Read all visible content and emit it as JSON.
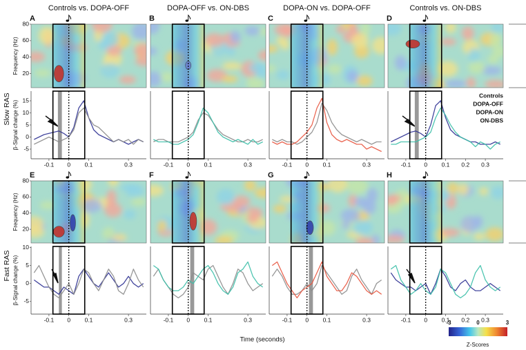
{
  "chart_data": [
    {
      "type": "line",
      "letter": "A",
      "title": "Controls vs. DOPA-OFF",
      "x": [
        -0.175,
        -0.15,
        -0.125,
        -0.1,
        -0.075,
        -0.05,
        -0.025,
        0,
        0.025,
        0.05,
        0.075,
        0.1,
        0.125,
        0.15,
        0.175,
        0.2,
        0.225,
        0.25,
        0.275,
        0.3,
        0.325,
        0.35,
        0.375
      ],
      "xlim": [
        -0.19,
        0.39
      ],
      "xticks": [
        -0.1,
        0,
        0.1,
        0.3
      ],
      "ylim": [
        -9,
        19
      ],
      "yticks": [
        -5,
        0,
        5,
        10,
        15
      ],
      "ylabel": "β-Signal change (%)",
      "freq_ylim": [
        3,
        80
      ],
      "freq_yticks": [
        20,
        40,
        60,
        80
      ],
      "freq_ylabel": "Frequency (Hz)",
      "analysis_window": [
        -0.08,
        0.08
      ],
      "shaded_window": [
        -0.055,
        -0.035
      ],
      "series": [
        {
          "name": "Controls",
          "color": "#2e3192",
          "values": [
            -1,
            0,
            1,
            1.5,
            2,
            2.5,
            1.5,
            0,
            4,
            12,
            15,
            8,
            3,
            1,
            0,
            -1,
            -2,
            -1,
            -2,
            -3,
            -2,
            -1,
            -2
          ]
        },
        {
          "name": "DOPA-OFF",
          "color": "#8c8c8c",
          "values": [
            -3,
            -2,
            -1,
            0,
            -1,
            -2,
            -1,
            0,
            3,
            10,
            12,
            8,
            5,
            4,
            2,
            0,
            -2,
            -1,
            -2,
            -1,
            -3,
            -1,
            -2
          ]
        }
      ]
    },
    {
      "type": "line",
      "letter": "B",
      "title": "DOPA-OFF vs. ON-DBS",
      "x": [
        -0.175,
        -0.15,
        -0.125,
        -0.1,
        -0.075,
        -0.05,
        -0.025,
        0,
        0.025,
        0.05,
        0.075,
        0.1,
        0.125,
        0.15,
        0.175,
        0.2,
        0.225,
        0.25,
        0.275,
        0.3,
        0.325,
        0.35,
        0.375
      ],
      "xlim": [
        -0.19,
        0.39
      ],
      "xticks": [
        -0.1,
        0,
        0.1,
        0.3
      ],
      "ylim": [
        -9,
        19
      ],
      "freq_ylim": [
        3,
        80
      ],
      "analysis_window": [
        -0.08,
        0.08
      ],
      "series": [
        {
          "name": "DOPA-OFF",
          "color": "#8c8c8c",
          "values": [
            -2,
            -1,
            -1,
            -2,
            -2,
            -2,
            -1,
            0,
            2,
            7,
            10,
            9,
            6,
            3,
            1,
            0,
            -1,
            -2,
            -2,
            -1,
            -2,
            -2,
            -1
          ]
        },
        {
          "name": "ON-DBS",
          "color": "#3cbfa8",
          "values": [
            -1,
            -2,
            -2,
            -2,
            -3,
            -3,
            -2,
            -1,
            1,
            6,
            12,
            10,
            6,
            2,
            0,
            -1,
            -2,
            -1,
            -2,
            -3,
            -1,
            -3,
            -2
          ]
        }
      ]
    },
    {
      "type": "line",
      "letter": "C",
      "title": "DOPA-ON vs. DOPA-OFF",
      "x": [
        -0.175,
        -0.15,
        -0.125,
        -0.1,
        -0.075,
        -0.05,
        -0.025,
        0,
        0.025,
        0.05,
        0.075,
        0.1,
        0.125,
        0.15,
        0.175,
        0.2,
        0.225,
        0.25,
        0.275,
        0.3,
        0.325,
        0.35,
        0.375
      ],
      "xlim": [
        -0.19,
        0.39
      ],
      "xticks": [
        -0.1,
        0,
        0.1,
        0.3
      ],
      "ylim": [
        -9,
        19
      ],
      "freq_ylim": [
        3,
        80
      ],
      "analysis_window": [
        -0.08,
        0.08
      ],
      "series": [
        {
          "name": "DOPA-OFF",
          "color": "#8c8c8c",
          "values": [
            -1,
            -2,
            -1,
            -2,
            -2,
            -3,
            -2,
            0,
            2,
            6,
            14,
            11,
            6,
            3,
            1,
            0,
            -1,
            -2,
            -1,
            -2,
            -3,
            -2,
            -2
          ]
        },
        {
          "name": "DOPA-ON",
          "color": "#e8553f",
          "values": [
            -2,
            -3,
            -2,
            -3,
            -3,
            -2,
            0,
            2,
            5,
            12,
            16,
            6,
            1,
            -1,
            -2,
            -1,
            -2,
            -3,
            -3,
            -5,
            -4,
            -5,
            -6
          ]
        }
      ]
    },
    {
      "type": "line",
      "letter": "D",
      "title": "Controls vs. ON-DBS",
      "x": [
        -0.175,
        -0.15,
        -0.125,
        -0.1,
        -0.075,
        -0.05,
        -0.025,
        0,
        0.025,
        0.05,
        0.075,
        0.1,
        0.125,
        0.15,
        0.175,
        0.2,
        0.225,
        0.25,
        0.275,
        0.3,
        0.325,
        0.35,
        0.375
      ],
      "xlim": [
        -0.19,
        0.39
      ],
      "xticks": [
        -0.1,
        0,
        0.1,
        0.2,
        0.3
      ],
      "ylim": [
        -9,
        19
      ],
      "freq_ylim": [
        3,
        80
      ],
      "analysis_window": [
        -0.08,
        0.08
      ],
      "shaded_window": [
        -0.055,
        -0.035
      ],
      "series": [
        {
          "name": "Controls",
          "color": "#2e3192",
          "values": [
            -2,
            -1,
            0,
            1,
            2,
            2.5,
            1.5,
            0,
            5,
            13,
            15,
            8,
            3,
            1,
            0,
            -1,
            -2,
            -2,
            -3,
            -3,
            -3,
            -2,
            -3
          ]
        },
        {
          "name": "ON-DBS",
          "color": "#3cbfa8",
          "values": [
            -3,
            -3,
            -2,
            -2,
            -2,
            -2,
            -1,
            0,
            2,
            8,
            12,
            9,
            5,
            2,
            0,
            -1,
            -2,
            -4,
            -2,
            -3,
            -5,
            -3,
            -2
          ]
        }
      ]
    },
    {
      "type": "line",
      "letter": "E",
      "x": [
        -0.175,
        -0.15,
        -0.125,
        -0.1,
        -0.075,
        -0.05,
        -0.025,
        0,
        0.025,
        0.05,
        0.075,
        0.1,
        0.125,
        0.15,
        0.175,
        0.2,
        0.225,
        0.25,
        0.275,
        0.3,
        0.325,
        0.35,
        0.375
      ],
      "xlim": [
        -0.19,
        0.39
      ],
      "xticks": [
        -0.1,
        0,
        0.1,
        0.3
      ],
      "ylim": [
        -8.5,
        10.3
      ],
      "yticks": [
        -5,
        0,
        5,
        10
      ],
      "ylabel": "β-Signal change (%)",
      "freq_ylim": [
        3,
        80
      ],
      "freq_yticks": [
        20,
        40,
        60,
        80
      ],
      "freq_ylabel": "Frequency (Hz)",
      "analysis_window": [
        -0.08,
        0.08
      ],
      "shaded_window": [
        -0.05,
        -0.035
      ],
      "series": [
        {
          "name": "Controls",
          "color": "#2e3192",
          "values": [
            1,
            0,
            -1,
            -1,
            -2,
            -3,
            -1,
            -2,
            -3,
            2,
            4,
            2,
            0,
            -1,
            1,
            3,
            1,
            -1,
            0,
            2,
            0,
            -1,
            0
          ]
        },
        {
          "name": "DOPA-OFF",
          "color": "#8c8c8c",
          "values": [
            3,
            5,
            2,
            -1,
            -3,
            -4,
            -2,
            0,
            -3,
            0,
            4,
            3,
            0,
            -2,
            1,
            4,
            2,
            -2,
            -3,
            0,
            4,
            1,
            -1
          ]
        }
      ]
    },
    {
      "type": "line",
      "letter": "F",
      "x": [
        -0.175,
        -0.15,
        -0.125,
        -0.1,
        -0.075,
        -0.05,
        -0.025,
        0,
        0.025,
        0.05,
        0.075,
        0.1,
        0.125,
        0.15,
        0.175,
        0.2,
        0.225,
        0.25,
        0.275,
        0.3,
        0.325,
        0.35,
        0.375
      ],
      "xlim": [
        -0.19,
        0.39
      ],
      "xticks": [
        -0.1,
        0,
        0.1,
        0.3
      ],
      "ylim": [
        -8.5,
        10.3
      ],
      "freq_ylim": [
        3,
        80
      ],
      "analysis_window": [
        -0.08,
        0.08
      ],
      "shaded_window": [
        0.01,
        0.03
      ],
      "series": [
        {
          "name": "DOPA-OFF",
          "color": "#8c8c8c",
          "values": [
            2,
            4,
            1,
            -1,
            -3,
            -4,
            -3,
            -1,
            3,
            2,
            1,
            4,
            5,
            2,
            -1,
            -3,
            0,
            4,
            3,
            0,
            -2,
            -1,
            0
          ]
        },
        {
          "name": "ON-DBS",
          "color": "#3cbfa8",
          "values": [
            5,
            4,
            1,
            -1,
            -2,
            -2,
            -1,
            1,
            0,
            2,
            4,
            5,
            3,
            0,
            -2,
            -3,
            -1,
            3,
            4,
            6,
            2,
            0,
            -1
          ]
        }
      ]
    },
    {
      "type": "line",
      "letter": "G",
      "x": [
        -0.175,
        -0.15,
        -0.125,
        -0.1,
        -0.075,
        -0.05,
        -0.025,
        0,
        0.025,
        0.05,
        0.075,
        0.1,
        0.125,
        0.15,
        0.175,
        0.2,
        0.225,
        0.25,
        0.275,
        0.3,
        0.325,
        0.35,
        0.375
      ],
      "xlim": [
        -0.19,
        0.39
      ],
      "xticks": [
        -0.1,
        0,
        0.1,
        0.3
      ],
      "ylim": [
        -8.5,
        10.3
      ],
      "freq_ylim": [
        3,
        80
      ],
      "analysis_window": [
        -0.08,
        0.08
      ],
      "shaded_window": [
        0.01,
        0.03
      ],
      "series": [
        {
          "name": "DOPA-OFF",
          "color": "#8c8c8c",
          "values": [
            2,
            4,
            2,
            -1,
            -3,
            -3,
            -2,
            0,
            -2,
            0,
            5,
            3,
            1,
            -1,
            -3,
            -2,
            2,
            4,
            1,
            -1,
            -3,
            0,
            1
          ]
        },
        {
          "name": "DOPA-ON",
          "color": "#e8553f",
          "values": [
            5,
            6,
            3,
            0,
            -2,
            -4,
            -2,
            -1,
            0,
            3,
            6,
            2,
            0,
            -2,
            -2,
            0,
            3,
            2,
            0,
            -2,
            -3,
            -2,
            -3
          ]
        }
      ]
    },
    {
      "type": "line",
      "letter": "H",
      "x": [
        -0.175,
        -0.15,
        -0.125,
        -0.1,
        -0.075,
        -0.05,
        -0.025,
        0,
        0.025,
        0.05,
        0.075,
        0.1,
        0.125,
        0.15,
        0.175,
        0.2,
        0.225,
        0.25,
        0.275,
        0.3,
        0.325,
        0.35,
        0.375
      ],
      "xlim": [
        -0.19,
        0.39
      ],
      "xticks": [
        -0.1,
        0,
        0.1,
        0.2,
        0.3
      ],
      "ylim": [
        -8.5,
        10.3
      ],
      "freq_ylim": [
        3,
        80
      ],
      "analysis_window": [
        -0.08,
        0.08
      ],
      "series": [
        {
          "name": "Controls",
          "color": "#2e3192",
          "values": [
            3,
            1,
            0,
            -1,
            -1,
            -2,
            -1,
            0,
            -3,
            0,
            4,
            2,
            -1,
            -2,
            0,
            1,
            -1,
            -2,
            -2,
            -1,
            0,
            -1,
            -2
          ]
        },
        {
          "name": "ON-DBS",
          "color": "#3cbfa8",
          "values": [
            4,
            5,
            1,
            -1,
            -3,
            -2,
            0,
            -2,
            -3,
            -1,
            4,
            3,
            0,
            -3,
            -4,
            -3,
            -1,
            3,
            5,
            1,
            -1,
            -2,
            -1
          ]
        }
      ]
    }
  ],
  "row_labels": [
    "Slow RAS",
    "Fast RAS"
  ],
  "xlabel": "Time (seconds)",
  "legend": [
    {
      "name": "Controls",
      "color": "#2e3192"
    },
    {
      "name": "DOPA-OFF",
      "color": "#8c8c8c"
    },
    {
      "name": "DOPA-ON",
      "color": "#e8553f"
    },
    {
      "name": "ON-DBS",
      "color": "#3cbfa8"
    }
  ],
  "colorbar": {
    "label": "Z-Scores",
    "lim": [
      -3,
      3
    ],
    "ticks": [
      -3,
      0,
      3
    ]
  }
}
